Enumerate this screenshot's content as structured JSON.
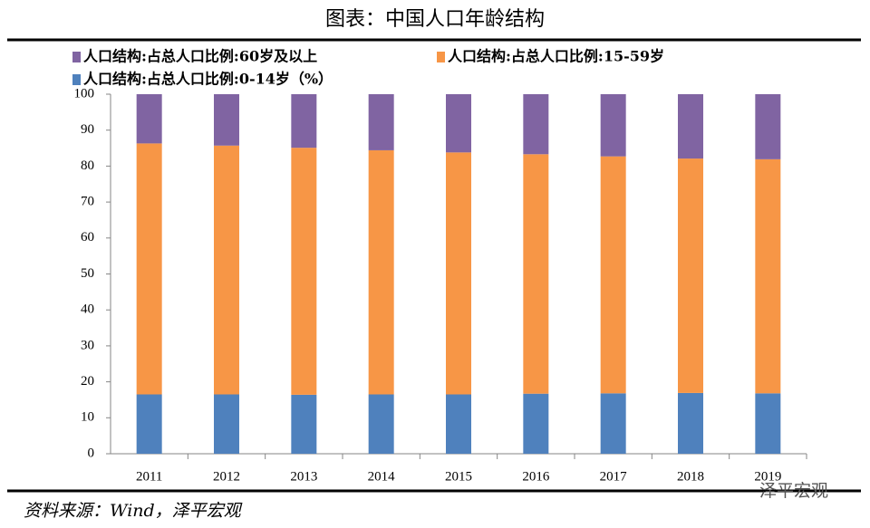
{
  "chart_data": {
    "type": "stacked_bar",
    "title": "图表：中国人口年龄结构",
    "source": "资料来源：Wind，泽平宏观",
    "watermark": "泽平宏观",
    "categories": [
      "2011",
      "2012",
      "2013",
      "2014",
      "2015",
      "2016",
      "2017",
      "2018",
      "2019"
    ],
    "series": [
      {
        "name": "人口结构:占总人口比例:0-14岁（%）",
        "color": "#4f81bd",
        "values": [
          16.5,
          16.5,
          16.4,
          16.5,
          16.5,
          16.7,
          16.8,
          16.9,
          16.8
        ]
      },
      {
        "name": "人口结构:占总人口比例:15-59岁",
        "color": "#f79646",
        "values": [
          69.8,
          69.2,
          68.7,
          67.9,
          67.3,
          66.6,
          65.9,
          65.2,
          65.1
        ]
      },
      {
        "name": "人口结构:占总人口比例:60岁及以上",
        "color": "#8064a2",
        "values": [
          13.7,
          14.3,
          14.9,
          15.6,
          16.2,
          16.7,
          17.3,
          17.9,
          18.1
        ]
      }
    ],
    "ylim": [
      0,
      100
    ],
    "yticks": [
      0,
      10,
      20,
      30,
      40,
      50,
      60,
      70,
      80,
      90,
      100
    ]
  }
}
